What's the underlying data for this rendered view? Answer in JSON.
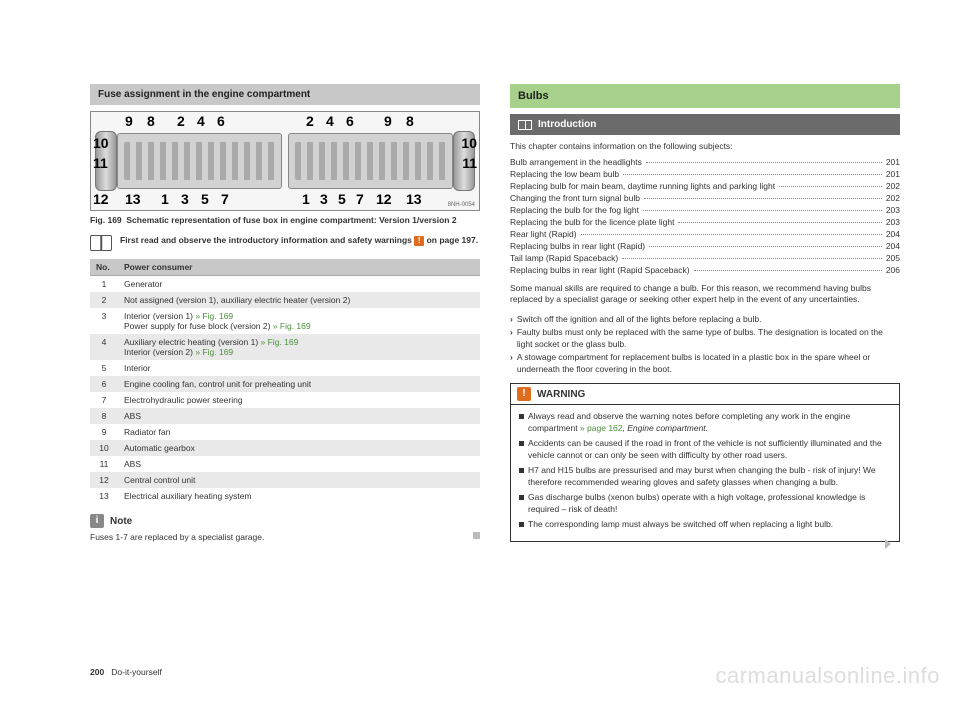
{
  "left": {
    "heading": "Fuse assignment in the engine compartment",
    "schematic": {
      "top_left": [
        "9",
        "8",
        "2",
        "4",
        "6"
      ],
      "left_side": [
        "10",
        "11",
        "12"
      ],
      "bottom_left": [
        "13",
        "1",
        "3",
        "5",
        "7"
      ],
      "top_right": [
        "2",
        "4",
        "6",
        "9",
        "8"
      ],
      "right_side": [
        "10",
        "11",
        "12"
      ],
      "bottom_right": [
        "1",
        "3",
        "5",
        "7",
        "13"
      ],
      "code": "8NH-0054"
    },
    "caption_prefix": "Fig. 169",
    "caption_text": "Schematic representation of fuse box in engine compartment: Version 1/version 2",
    "readfirst": "First read and observe the introductory information and safety warnings ",
    "readfirst_tail": " on page 197.",
    "table": {
      "headers": [
        "No.",
        "Power consumer"
      ],
      "rows": [
        {
          "no": "1",
          "txt": "Generator"
        },
        {
          "no": "2",
          "txt": "Not assigned (version 1), auxiliary electric heater (version 2)"
        },
        {
          "no": "3",
          "txt": "Interior (version 1) ",
          "ref1": "» Fig. 169",
          "txt2": "Power supply for fuse block (version 2) ",
          "ref2": "» Fig. 169"
        },
        {
          "no": "4",
          "txt": "Auxiliary electric heating (version 1) ",
          "ref1": "» Fig. 169",
          "txt2": "Interior (version 2) ",
          "ref2": "» Fig. 169"
        },
        {
          "no": "5",
          "txt": "Interior"
        },
        {
          "no": "6",
          "txt": "Engine cooling fan, control unit for preheating unit"
        },
        {
          "no": "7",
          "txt": "Electrohydraulic power steering"
        },
        {
          "no": "8",
          "txt": "ABS"
        },
        {
          "no": "9",
          "txt": "Radiator fan"
        },
        {
          "no": "10",
          "txt": "Automatic gearbox"
        },
        {
          "no": "11",
          "txt": "ABS"
        },
        {
          "no": "12",
          "txt": "Central control unit"
        },
        {
          "no": "13",
          "txt": "Electrical auxiliary heating system"
        }
      ]
    },
    "note_title": "Note",
    "note_body": "Fuses 1-7 are replaced by a specialist garage."
  },
  "right": {
    "heading": "Bulbs",
    "subheading": "Introduction",
    "intro": "This chapter contains information on the following subjects:",
    "toc": [
      {
        "label": "Bulb arrangement in the headlights",
        "pg": "201"
      },
      {
        "label": "Replacing the low beam bulb",
        "pg": "201"
      },
      {
        "label": "Replacing bulb for main beam, daytime running lights and parking light",
        "pg": "202"
      },
      {
        "label": "Changing the front turn signal bulb",
        "pg": "202"
      },
      {
        "label": "Replacing the bulb for the fog light",
        "pg": "203"
      },
      {
        "label": "Replacing the bulb for the licence plate light",
        "pg": "203"
      },
      {
        "label": "Rear light (Rapid)",
        "pg": "204"
      },
      {
        "label": "Replacing bulbs in rear light (Rapid)",
        "pg": "204"
      },
      {
        "label": "Tail lamp (Rapid Spaceback)",
        "pg": "205"
      },
      {
        "label": "Replacing bulbs in rear light (Rapid Spaceback)",
        "pg": "206"
      }
    ],
    "para": "Some manual skills are required to change a bulb. For this reason, we recommend having bulbs replaced by a specialist garage or seeking other expert help in the event of any uncertainties.",
    "bullets": [
      "Switch off the ignition and all of the lights before replacing a bulb.",
      "Faulty bulbs must only be replaced with the same type of bulbs. The designation is located on the light socket or the glass bulb.",
      "A stowage compartment for replacement bulbs is located in a plastic box in the spare wheel or underneath the floor covering in the boot."
    ],
    "warning_title": "WARNING",
    "warning_items": [
      {
        "pre": "Always read and observe the warning notes before completing any work in the engine compartment ",
        "ref": "» page 162",
        "post": ", Engine compartment."
      },
      {
        "pre": "Accidents can be caused if the road in front of the vehicle is not sufficiently illuminated and the vehicle cannot or can only be seen with difficulty by other road users."
      },
      {
        "pre": "H7 and H15 bulbs are pressurised and may burst when changing the bulb - risk of injury! We therefore recommended wearing gloves and safety glasses when changing a bulb."
      },
      {
        "pre": "Gas discharge bulbs (xenon bulbs) operate with a high voltage, professional knowledge is required – risk of death!"
      },
      {
        "pre": "The corresponding lamp must always be switched off when replacing a light bulb."
      }
    ]
  },
  "footer_page": "200",
  "footer_section": "Do-it-yourself",
  "watermark": "carmanualsonline.info"
}
